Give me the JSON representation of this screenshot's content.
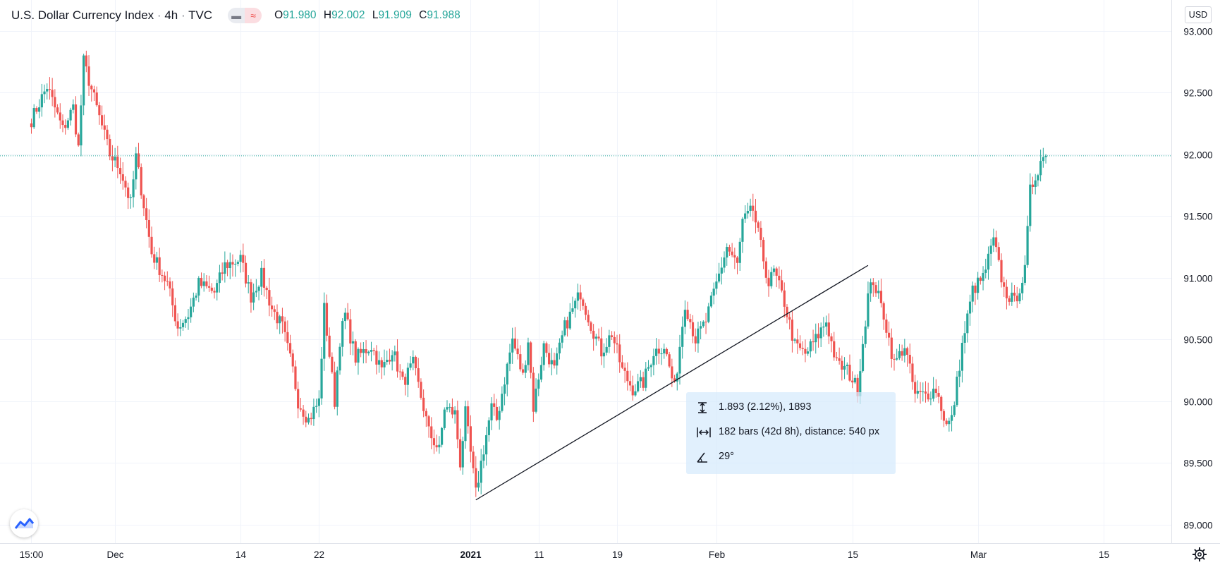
{
  "legend": {
    "symbol": "U.S. Dollar Currency Index",
    "separator": "·",
    "interval": "4h",
    "source": "TVC",
    "open_label": "O",
    "open": "91.980",
    "high_label": "H",
    "high": "92.002",
    "low_label": "L",
    "low": "91.909",
    "close_label": "C",
    "close": "91.988"
  },
  "currency": "USD",
  "colors": {
    "up": "#26a69a",
    "down": "#ef5350",
    "grid": "#f0f3fa",
    "text": "#131722",
    "last_price_line": "#26a69a",
    "measure_bg": "#d5eafc"
  },
  "icons": {
    "toggle_1": "minus-icon",
    "toggle_2": "wave-icon",
    "measure_price": "price-range-icon",
    "measure_bars": "bar-range-icon",
    "measure_angle": "angle-icon",
    "logo": "tradingview-logo-icon",
    "settings": "gear-icon"
  },
  "measurement": {
    "price_change": "1.893 (2.12%), 1893",
    "bars": "182 bars (42d 8h), distance: 540 px",
    "angle": "29°"
  },
  "chart_data": {
    "type": "candlestick",
    "title": "U.S. Dollar Currency Index · 4h · TVC",
    "ylim": [
      88.85,
      93.25
    ],
    "y_ticks": [
      "93.000",
      "92.500",
      "92.000",
      "91.500",
      "91.000",
      "90.500",
      "90.000",
      "89.500",
      "89.000"
    ],
    "x_ticks": [
      "15:00",
      "Dec",
      "14",
      "22",
      "2021",
      "11",
      "19",
      "Feb",
      "15",
      "Mar",
      "15"
    ],
    "x_tick_positions": [
      0,
      16,
      40,
      55,
      84,
      97,
      112,
      131,
      157,
      181,
      205
    ],
    "x_range": [
      -6,
      218
    ],
    "x_tick_bold": [
      "2021"
    ],
    "last_price": 91.988,
    "trendline": {
      "from": [
        89.2,
        85
      ],
      "to": [
        91.1,
        160
      ]
    },
    "anchors": [
      [
        0,
        92.28
      ],
      [
        3,
        92.55
      ],
      [
        6,
        92.2
      ],
      [
        8,
        92.38
      ],
      [
        9,
        92.05
      ],
      [
        10,
        92.75
      ],
      [
        12,
        92.45
      ],
      [
        15,
        92.0
      ],
      [
        17,
        91.88
      ],
      [
        19,
        91.6
      ],
      [
        20,
        91.98
      ],
      [
        23,
        91.2
      ],
      [
        26,
        90.95
      ],
      [
        28,
        90.6
      ],
      [
        30,
        90.7
      ],
      [
        32,
        90.95
      ],
      [
        35,
        90.88
      ],
      [
        37,
        91.1
      ],
      [
        40,
        91.15
      ],
      [
        42,
        90.85
      ],
      [
        44,
        91.02
      ],
      [
        46,
        90.75
      ],
      [
        48,
        90.6
      ],
      [
        50,
        90.25
      ],
      [
        51,
        90.0
      ],
      [
        53,
        89.85
      ],
      [
        55,
        90.0
      ],
      [
        56,
        90.75
      ],
      [
        58,
        90.0
      ],
      [
        59,
        90.5
      ],
      [
        60,
        90.7
      ],
      [
        62,
        90.35
      ],
      [
        65,
        90.45
      ],
      [
        67,
        90.25
      ],
      [
        69,
        90.42
      ],
      [
        71,
        90.15
      ],
      [
        73,
        90.3
      ],
      [
        75,
        89.95
      ],
      [
        76,
        89.75
      ],
      [
        78,
        89.6
      ],
      [
        79,
        89.95
      ],
      [
        81,
        89.9
      ],
      [
        82,
        89.5
      ],
      [
        83,
        89.9
      ],
      [
        85,
        89.25
      ],
      [
        86,
        89.5
      ],
      [
        88,
        89.95
      ],
      [
        89,
        89.85
      ],
      [
        92,
        90.5
      ],
      [
        94,
        90.2
      ],
      [
        95,
        90.5
      ],
      [
        96,
        89.95
      ],
      [
        98,
        90.45
      ],
      [
        100,
        90.25
      ],
      [
        102,
        90.6
      ],
      [
        105,
        90.88
      ],
      [
        107,
        90.62
      ],
      [
        109,
        90.4
      ],
      [
        111,
        90.55
      ],
      [
        113,
        90.25
      ],
      [
        115,
        90.1
      ],
      [
        117,
        90.15
      ],
      [
        119,
        90.4
      ],
      [
        121,
        90.45
      ],
      [
        123,
        90.1
      ],
      [
        125,
        90.8
      ],
      [
        127,
        90.5
      ],
      [
        129,
        90.65
      ],
      [
        131,
        90.95
      ],
      [
        133,
        91.25
      ],
      [
        135,
        91.1
      ],
      [
        136,
        91.45
      ],
      [
        138,
        91.55
      ],
      [
        140,
        91.15
      ],
      [
        141,
        90.95
      ],
      [
        142,
        91.05
      ],
      [
        144,
        90.8
      ],
      [
        146,
        90.45
      ],
      [
        148,
        90.38
      ],
      [
        150,
        90.5
      ],
      [
        152,
        90.65
      ],
      [
        154,
        90.3
      ],
      [
        156,
        90.25
      ],
      [
        158,
        90.1
      ],
      [
        160,
        90.85
      ],
      [
        161,
        90.98
      ],
      [
        163,
        90.7
      ],
      [
        165,
        90.3
      ],
      [
        167,
        90.45
      ],
      [
        169,
        90.05
      ],
      [
        171,
        90.05
      ],
      [
        173,
        90.1
      ],
      [
        175,
        89.8
      ],
      [
        176,
        89.85
      ],
      [
        178,
        90.45
      ],
      [
        180,
        90.9
      ],
      [
        182,
        91.0
      ],
      [
        184,
        91.3
      ],
      [
        186,
        90.9
      ],
      [
        188,
        90.8
      ],
      [
        190,
        91.05
      ],
      [
        191,
        91.7
      ],
      [
        193,
        91.95
      ],
      [
        194,
        91.99
      ]
    ]
  }
}
